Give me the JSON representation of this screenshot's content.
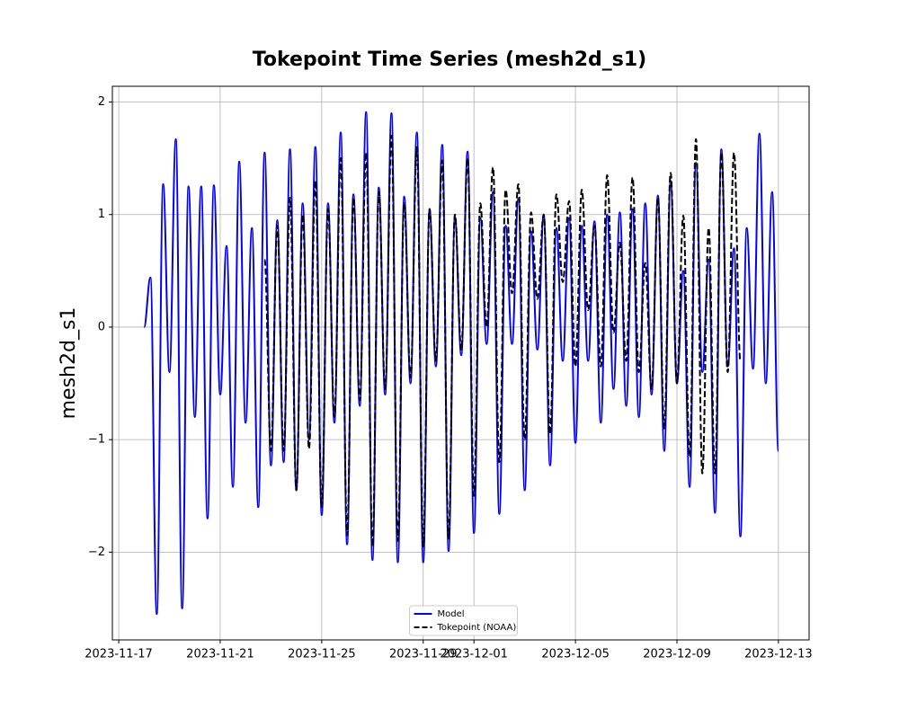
{
  "chart_data": {
    "type": "line",
    "title": "Tokepoint Time Series (mesh2d_s1)",
    "y_label": "mesh2d_s1",
    "xlim": [
      "2023-11-16T18:00",
      "2023-12-14T05:00"
    ],
    "xticks": [
      "2023-11-17",
      "2023-11-21",
      "2023-11-25",
      "2023-11-29",
      "2023-12-01",
      "2023-12-05",
      "2023-12-09",
      "2023-12-13"
    ],
    "ylim": [
      -2.78,
      2.14
    ],
    "yticks": [
      {
        "value": -2,
        "label": "−2"
      },
      {
        "value": -1,
        "label": "−1"
      },
      0,
      1,
      2
    ],
    "grid": true,
    "legend": "lower center",
    "series": [
      {
        "name": "Model",
        "color": "#0000ff",
        "dash": "solid",
        "x": [
          "2023-11-18T00:00",
          "2023-11-18T06:00",
          "2023-11-18T12:00",
          "2023-11-18T18:00",
          "2023-11-19T00:00",
          "2023-11-19T06:00",
          "2023-11-19T12:00",
          "2023-11-19T18:00",
          "2023-11-20T00:00",
          "2023-11-20T06:00",
          "2023-11-20T12:00",
          "2023-11-20T18:00",
          "2023-11-21T00:00",
          "2023-11-21T06:00",
          "2023-11-21T12:00",
          "2023-11-21T18:00",
          "2023-11-22T00:00",
          "2023-11-22T06:00",
          "2023-11-22T12:00",
          "2023-11-22T18:00",
          "2023-11-23T00:00",
          "2023-11-23T06:00",
          "2023-11-23T12:00",
          "2023-11-23T18:00",
          "2023-11-24T00:00",
          "2023-11-24T06:00",
          "2023-11-24T12:00",
          "2023-11-24T18:00",
          "2023-11-25T00:00",
          "2023-11-25T06:00",
          "2023-11-25T12:00",
          "2023-11-25T18:00",
          "2023-11-26T00:00",
          "2023-11-26T06:00",
          "2023-11-26T12:00",
          "2023-11-26T18:00",
          "2023-11-27T00:00",
          "2023-11-27T06:00",
          "2023-11-27T12:00",
          "2023-11-27T18:00",
          "2023-11-28T00:00",
          "2023-11-28T06:00",
          "2023-11-28T12:00",
          "2023-11-28T18:00",
          "2023-11-29T00:00",
          "2023-11-29T06:00",
          "2023-11-29T12:00",
          "2023-11-29T18:00",
          "2023-11-30T00:00",
          "2023-11-30T06:00",
          "2023-11-30T12:00",
          "2023-11-30T18:00",
          "2023-12-01T00:00",
          "2023-12-01T06:00",
          "2023-12-01T12:00",
          "2023-12-01T18:00",
          "2023-12-02T00:00",
          "2023-12-02T06:00",
          "2023-12-02T12:00",
          "2023-12-02T18:00",
          "2023-12-03T00:00",
          "2023-12-03T06:00",
          "2023-12-03T12:00",
          "2023-12-03T18:00",
          "2023-12-04T00:00",
          "2023-12-04T06:00",
          "2023-12-04T12:00",
          "2023-12-04T18:00",
          "2023-12-05T00:00",
          "2023-12-05T06:00",
          "2023-12-05T12:00",
          "2023-12-05T18:00",
          "2023-12-06T00:00",
          "2023-12-06T06:00",
          "2023-12-06T12:00",
          "2023-12-06T18:00",
          "2023-12-07T00:00",
          "2023-12-07T06:00",
          "2023-12-07T12:00",
          "2023-12-07T18:00",
          "2023-12-08T00:00",
          "2023-12-08T06:00",
          "2023-12-08T12:00",
          "2023-12-08T18:00",
          "2023-12-09T00:00",
          "2023-12-09T06:00",
          "2023-12-09T12:00",
          "2023-12-09T18:00",
          "2023-12-10T00:00",
          "2023-12-10T06:00",
          "2023-12-10T12:00",
          "2023-12-10T18:00",
          "2023-12-11T00:00",
          "2023-12-11T06:00",
          "2023-12-11T12:00",
          "2023-12-11T18:00",
          "2023-12-12T00:00",
          "2023-12-12T06:00",
          "2023-12-12T12:00",
          "2023-12-12T18:00",
          "2023-12-13T00:00"
        ],
        "values": [
          0,
          0.44,
          -2.55,
          1.27,
          -0.4,
          1.67,
          -2.5,
          1.25,
          -0.8,
          1.25,
          -1.7,
          1.26,
          -0.6,
          0.72,
          -1.42,
          1.47,
          -0.85,
          0.88,
          -1.6,
          1.55,
          -1.23,
          0.95,
          -1.2,
          1.58,
          -1.45,
          1.1,
          -1.0,
          1.6,
          -1.67,
          1.1,
          -0.85,
          1.73,
          -1.93,
          1.18,
          -0.7,
          1.91,
          -2.07,
          1.24,
          -0.6,
          1.9,
          -2.09,
          1.16,
          -0.5,
          1.73,
          -2.09,
          1.04,
          -0.35,
          1.62,
          -1.99,
          0.98,
          -0.25,
          1.56,
          -1.83,
          0.97,
          -0.15,
          1.2,
          -1.66,
          0.9,
          -0.15,
          1.14,
          -1.45,
          0.85,
          -0.2,
          1.0,
          -1.23,
          0.88,
          -0.3,
          0.97,
          -1.03,
          0.9,
          -0.3,
          0.94,
          -0.85,
          1.0,
          -0.55,
          1.02,
          -0.7,
          1.05,
          -0.8,
          1.1,
          -0.6,
          1.17,
          -1.1,
          1.3,
          -0.5,
          0.5,
          -1.42,
          1.46,
          -0.4,
          0.6,
          -1.65,
          1.58,
          -0.35,
          0.7,
          -1.86,
          0.88,
          -0.37,
          1.72,
          -0.5,
          1.2,
          -1.1
        ]
      },
      {
        "name": "Tokepoint (NOAA)",
        "color": "#000000",
        "dash": "dashed",
        "x": [
          "2023-11-22T18:00",
          "2023-11-23T00:00",
          "2023-11-23T06:00",
          "2023-11-23T12:00",
          "2023-11-23T18:00",
          "2023-11-24T00:00",
          "2023-11-24T06:00",
          "2023-11-24T12:00",
          "2023-11-24T18:00",
          "2023-11-25T00:00",
          "2023-11-25T06:00",
          "2023-11-25T12:00",
          "2023-11-25T18:00",
          "2023-11-26T00:00",
          "2023-11-26T06:00",
          "2023-11-26T12:00",
          "2023-11-26T18:00",
          "2023-11-27T00:00",
          "2023-11-27T06:00",
          "2023-11-27T12:00",
          "2023-11-27T18:00",
          "2023-11-28T00:00",
          "2023-11-28T06:00",
          "2023-11-28T12:00",
          "2023-11-28T18:00",
          "2023-11-29T00:00",
          "2023-11-29T06:00",
          "2023-11-29T12:00",
          "2023-11-29T18:00",
          "2023-11-30T00:00",
          "2023-11-30T06:00",
          "2023-11-30T12:00",
          "2023-11-30T18:00",
          "2023-12-01T00:00",
          "2023-12-01T06:00",
          "2023-12-01T12:00",
          "2023-12-01T18:00",
          "2023-12-02T00:00",
          "2023-12-02T06:00",
          "2023-12-02T12:00",
          "2023-12-02T18:00",
          "2023-12-03T00:00",
          "2023-12-03T06:00",
          "2023-12-03T12:00",
          "2023-12-03T18:00",
          "2023-12-04T00:00",
          "2023-12-04T06:00",
          "2023-12-04T12:00",
          "2023-12-04T18:00",
          "2023-12-05T00:00",
          "2023-12-05T06:00",
          "2023-12-05T12:00",
          "2023-12-05T18:00",
          "2023-12-06T00:00",
          "2023-12-06T06:00",
          "2023-12-06T12:00",
          "2023-12-06T18:00",
          "2023-12-07T00:00",
          "2023-12-07T06:00",
          "2023-12-07T12:00",
          "2023-12-07T18:00",
          "2023-12-08T00:00",
          "2023-12-08T06:00",
          "2023-12-08T12:00",
          "2023-12-08T18:00",
          "2023-12-09T00:00",
          "2023-12-09T06:00",
          "2023-12-09T12:00",
          "2023-12-09T18:00",
          "2023-12-10T00:00",
          "2023-12-10T06:00",
          "2023-12-10T12:00",
          "2023-12-10T18:00",
          "2023-12-11T00:00",
          "2023-12-11T06:00",
          "2023-12-11T12:00"
        ],
        "values": [
          0.6,
          -1.1,
          0.9,
          -1.1,
          1.15,
          -1.45,
          1.0,
          -1.08,
          1.3,
          -1.6,
          1.05,
          -0.8,
          1.5,
          -1.85,
          1.15,
          -0.65,
          1.55,
          -1.95,
          1.2,
          -0.55,
          1.7,
          -1.9,
          1.1,
          -0.45,
          1.6,
          -1.95,
          1.05,
          -0.3,
          1.48,
          -1.88,
          1.0,
          -0.2,
          1.5,
          -1.5,
          1.1,
          0.0,
          1.42,
          -1.2,
          1.22,
          0.3,
          1.27,
          -1.0,
          1.02,
          0.25,
          1.0,
          -0.95,
          1.18,
          0.4,
          1.12,
          -0.35,
          1.22,
          0.15,
          0.9,
          -0.35,
          1.35,
          -0.05,
          0.75,
          -0.3,
          1.33,
          -0.4,
          0.57,
          -0.55,
          1.15,
          -0.9,
          1.37,
          -0.5,
          0.99,
          -1.15,
          1.67,
          -1.3,
          0.88,
          -1.3,
          1.55,
          -0.4,
          1.55,
          -0.3
        ]
      }
    ]
  }
}
